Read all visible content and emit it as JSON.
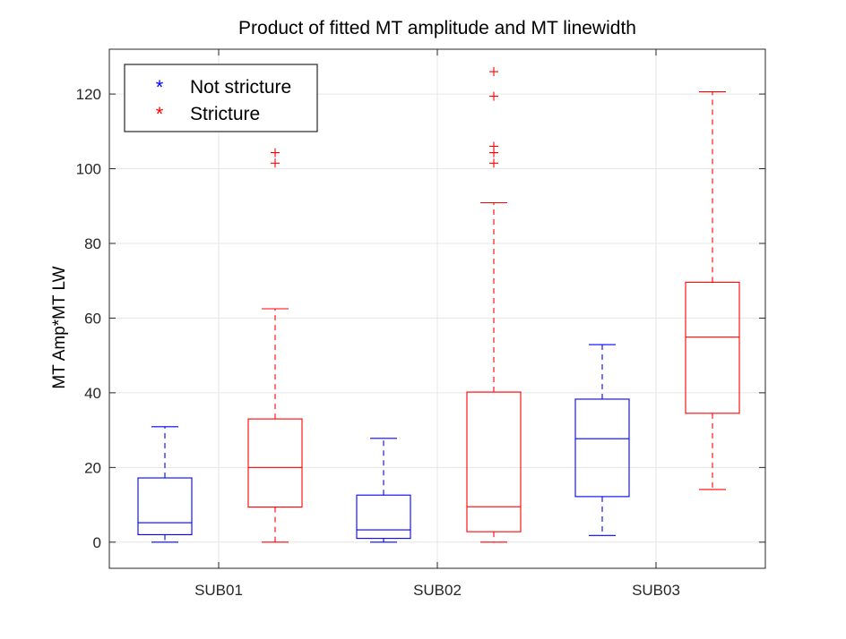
{
  "chart_data": {
    "type": "boxplot",
    "title": "Product of fitted MT amplitude and MT linewidth",
    "xlabel": "",
    "ylabel": "MT Amp*MT LW",
    "ylim": [
      -7,
      132
    ],
    "yticks": [
      0,
      20,
      40,
      60,
      80,
      100,
      120
    ],
    "categories": [
      "SUB01",
      "SUB02",
      "SUB03"
    ],
    "grid": true,
    "legend_position": "top-left",
    "colors": {
      "Not stricture": "#0000ff",
      "Stricture": "#ff0000"
    },
    "legend": [
      {
        "name": "Not stricture",
        "marker": "*",
        "color": "#0000ff"
      },
      {
        "name": "Stricture",
        "marker": "*",
        "color": "#ff0000"
      }
    ],
    "series": [
      {
        "name": "Not stricture",
        "color": "#0000ff",
        "boxes": [
          {
            "category": "SUB01",
            "whisker_low": 0,
            "q1": 2,
            "median": 5.2,
            "q3": 17.2,
            "whisker_high": 30.9,
            "outliers": []
          },
          {
            "category": "SUB02",
            "whisker_low": 0,
            "q1": 1,
            "median": 3.3,
            "q3": 12.6,
            "whisker_high": 27.8,
            "outliers": []
          },
          {
            "category": "SUB03",
            "whisker_low": 1.8,
            "q1": 12.2,
            "median": 27.7,
            "q3": 38.3,
            "whisker_high": 52.9,
            "outliers": []
          }
        ]
      },
      {
        "name": "Stricture",
        "color": "#ff0000",
        "boxes": [
          {
            "category": "SUB01",
            "whisker_low": 0,
            "q1": 9.4,
            "median": 20,
            "q3": 33,
            "whisker_high": 62.5,
            "outliers": [
              101.5,
              104.3
            ]
          },
          {
            "category": "SUB02",
            "whisker_low": 0,
            "q1": 2.8,
            "median": 9.5,
            "q3": 40.2,
            "whisker_high": 90.9,
            "outliers": [
              101.5,
              104.3,
              106,
              119.4,
              126
            ]
          },
          {
            "category": "SUB03",
            "whisker_low": 14.1,
            "q1": 34.5,
            "median": 54.9,
            "q3": 69.6,
            "whisker_high": 120.6,
            "outliers": []
          }
        ]
      }
    ]
  }
}
